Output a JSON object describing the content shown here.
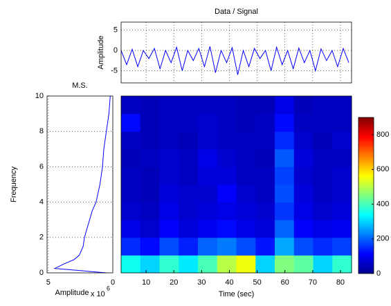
{
  "chart_data": [
    {
      "type": "line",
      "title": "Data / Signal",
      "ylabel": "Amplitude",
      "x": [
        1,
        3,
        5,
        7,
        9,
        11,
        13,
        15,
        17,
        19,
        21,
        23,
        25,
        27,
        29,
        31,
        33,
        35,
        37,
        39,
        41,
        43,
        45,
        47,
        49,
        51,
        53,
        55,
        57,
        59,
        61,
        63,
        65,
        67,
        69,
        71,
        73,
        75,
        77,
        79,
        81,
        83
      ],
      "series": [
        {
          "color": "#0000ff",
          "values": [
            0,
            -3.5,
            0.3,
            -4,
            0,
            -2,
            0.5,
            -4.5,
            0,
            -3,
            0.8,
            -5,
            0,
            -2.5,
            0.5,
            -4,
            1,
            -5.5,
            0,
            -3,
            0.7,
            -6,
            0,
            -4,
            0.5,
            -2,
            0,
            -5,
            0.8,
            -3.5,
            0,
            -4.5,
            0.6,
            -3,
            0,
            -5,
            0.4,
            -2.5,
            0,
            -4,
            0.5,
            -3
          ]
        }
      ],
      "xlim": [
        1,
        84
      ],
      "xticks": [
        10,
        20,
        30,
        40,
        50,
        60,
        70,
        80
      ],
      "ylim": [
        -8,
        7
      ],
      "yticks": [
        -5,
        0,
        5
      ],
      "grid": true
    },
    {
      "type": "hline",
      "title": "M.S.",
      "ylabel": "Frequency",
      "xlabel": "Amplitude",
      "exponent": {
        "base": "x 10",
        "power": "6"
      },
      "frequency": [
        0,
        0.25,
        0.5,
        0.75,
        1,
        1.5,
        2,
        2.5,
        3,
        3.5,
        4,
        5,
        6,
        7,
        8,
        9,
        10
      ],
      "series": [
        {
          "color": "#0000ff",
          "values": [
            0.5,
            4.5,
            3.8,
            3.0,
            2.6,
            2.3,
            2.2,
            2.0,
            1.8,
            1.6,
            1.3,
            1.0,
            0.8,
            0.7,
            0.5,
            0.3,
            0.2
          ]
        }
      ],
      "xlim": [
        5.1,
        0
      ],
      "xticks": [
        5,
        0
      ],
      "ylim": [
        0,
        10
      ],
      "yticks": [
        0,
        2,
        4,
        6,
        8,
        10
      ],
      "grid": true
    },
    {
      "type": "heatmap",
      "xlabel": "Time (sec)",
      "xlim": [
        1,
        84
      ],
      "xticks": [
        10,
        20,
        30,
        40,
        50,
        60,
        70,
        80
      ],
      "ylim": [
        0,
        10
      ],
      "z": [
        [
          350,
          300,
          380,
          320,
          400,
          500,
          550,
          300,
          450,
          420,
          300,
          380
        ],
        [
          150,
          120,
          180,
          140,
          200,
          220,
          180,
          130,
          260,
          180,
          150,
          170
        ],
        [
          90,
          70,
          110,
          80,
          100,
          120,
          90,
          80,
          200,
          110,
          90,
          100
        ],
        [
          70,
          60,
          90,
          70,
          80,
          90,
          80,
          70,
          160,
          90,
          70,
          80
        ],
        [
          60,
          50,
          80,
          70,
          70,
          110,
          70,
          60,
          180,
          80,
          60,
          70
        ],
        [
          60,
          50,
          70,
          60,
          80,
          80,
          60,
          60,
          170,
          70,
          60,
          70
        ],
        [
          50,
          60,
          70,
          60,
          90,
          70,
          60,
          50,
          190,
          80,
          60,
          60
        ],
        [
          60,
          50,
          60,
          50,
          70,
          60,
          60,
          60,
          150,
          70,
          50,
          70
        ],
        [
          120,
          50,
          60,
          60,
          70,
          60,
          50,
          60,
          120,
          60,
          60,
          60
        ],
        [
          60,
          50,
          60,
          60,
          60,
          60,
          50,
          50,
          90,
          50,
          60,
          60
        ]
      ],
      "clim": [
        0,
        900
      ],
      "cticks": [
        0,
        200,
        400,
        600,
        800
      ],
      "colormap": "jet"
    }
  ]
}
